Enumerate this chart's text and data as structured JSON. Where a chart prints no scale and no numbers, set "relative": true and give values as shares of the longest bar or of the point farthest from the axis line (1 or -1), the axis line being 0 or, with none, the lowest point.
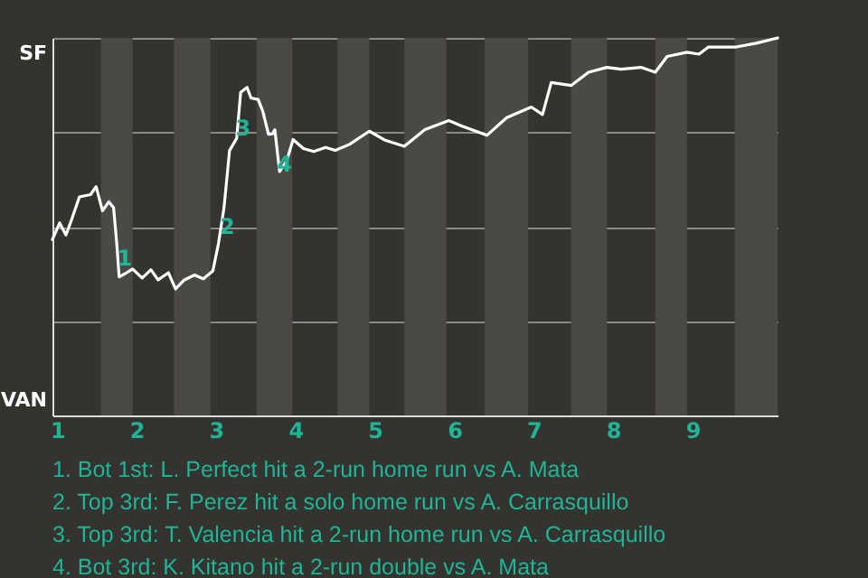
{
  "chart_data": {
    "type": "line",
    "x": [
      0.94,
      1.03,
      1.11,
      1.18,
      1.28,
      1.42,
      1.49,
      1.57,
      1.65,
      1.71,
      1.75,
      1.78,
      1.85,
      1.95,
      2.07,
      2.18,
      2.27,
      2.4,
      2.49,
      2.6,
      2.73,
      2.84,
      2.96,
      3.03,
      3.1,
      3.17,
      3.26,
      3.31,
      3.39,
      3.44,
      3.53,
      3.59,
      3.66,
      3.71,
      3.74,
      3.8,
      3.89,
      3.97,
      4.1,
      4.23,
      4.38,
      4.5,
      4.68,
      4.93,
      5.13,
      5.37,
      5.63,
      5.93,
      6.1,
      6.41,
      6.66,
      6.97,
      7.11,
      7.22,
      7.47,
      7.69,
      7.92,
      8.1,
      8.35,
      8.53,
      8.68,
      8.93,
      9.08,
      9.2,
      9.55,
      9.8,
      10.07
    ],
    "series": [
      {
        "color": "#ffffff",
        "values": [
          0.466,
          0.51,
          0.478,
          0.518,
          0.579,
          0.585,
          0.606,
          0.542,
          0.566,
          0.55,
          0.455,
          0.367,
          0.375,
          0.388,
          0.364,
          0.386,
          0.359,
          0.378,
          0.335,
          0.359,
          0.372,
          0.362,
          0.383,
          0.455,
          0.55,
          0.702,
          0.734,
          0.856,
          0.869,
          0.841,
          0.837,
          0.805,
          0.745,
          0.746,
          0.757,
          0.646,
          0.675,
          0.731,
          0.707,
          0.699,
          0.71,
          0.702,
          0.718,
          0.753,
          0.729,
          0.713,
          0.757,
          0.781,
          0.766,
          0.742,
          0.789,
          0.817,
          0.797,
          0.882,
          0.874,
          0.909,
          0.922,
          0.917,
          0.922,
          0.909,
          0.951,
          0.962,
          0.957,
          0.976,
          0.976,
          0.986,
          1.0
        ]
      }
    ],
    "relative": true,
    "xlim": [
      0.94,
      10.07
    ],
    "xticks": [
      1,
      2,
      3,
      4,
      5,
      6,
      7,
      8,
      9
    ],
    "grid": "y",
    "marker": "none",
    "line_style": "solid",
    "bands": [
      {
        "axis": "x",
        "from": 1.55,
        "to": 1.95,
        "color": "#4b4946"
      },
      {
        "axis": "x",
        "from": 2.47,
        "to": 2.93,
        "color": "#4b4946"
      },
      {
        "axis": "x",
        "from": 3.51,
        "to": 3.96,
        "color": "#4b4946"
      },
      {
        "axis": "x",
        "from": 4.53,
        "to": 4.93,
        "color": "#4b4946"
      },
      {
        "axis": "x",
        "from": 5.37,
        "to": 5.9,
        "color": "#4b4946"
      },
      {
        "axis": "x",
        "from": 6.38,
        "to": 6.93,
        "color": "#4b4946"
      },
      {
        "axis": "x",
        "from": 7.47,
        "to": 7.92,
        "color": "#4b4946"
      },
      {
        "axis": "x",
        "from": 8.53,
        "to": 8.93,
        "color": "#4b4946"
      },
      {
        "axis": "x",
        "from": 9.53,
        "to": 10.07,
        "color": "#4b4946"
      }
    ],
    "annotations": [
      "SF",
      "VAN",
      {
        "text": "1",
        "x": 1.85,
        "y": 0.416
      },
      {
        "text": "2",
        "x": 3.14,
        "y": 0.5
      },
      {
        "text": "3",
        "x": 3.34,
        "y": 0.76
      },
      {
        "text": "4",
        "x": 3.86,
        "y": 0.665
      },
      "1. Bot 1st: L. Perfect hit a 2-run home run vs A. Mata",
      "2. Top 3rd: F. Perez hit a solo home run vs A. Carrasquillo",
      "3. Top 3rd: T. Valencia hit a 2-run home run vs A. Carrasquillo",
      "4. Bot 3rd: K. Kitano hit a 2-run double vs A. Mata"
    ]
  }
}
